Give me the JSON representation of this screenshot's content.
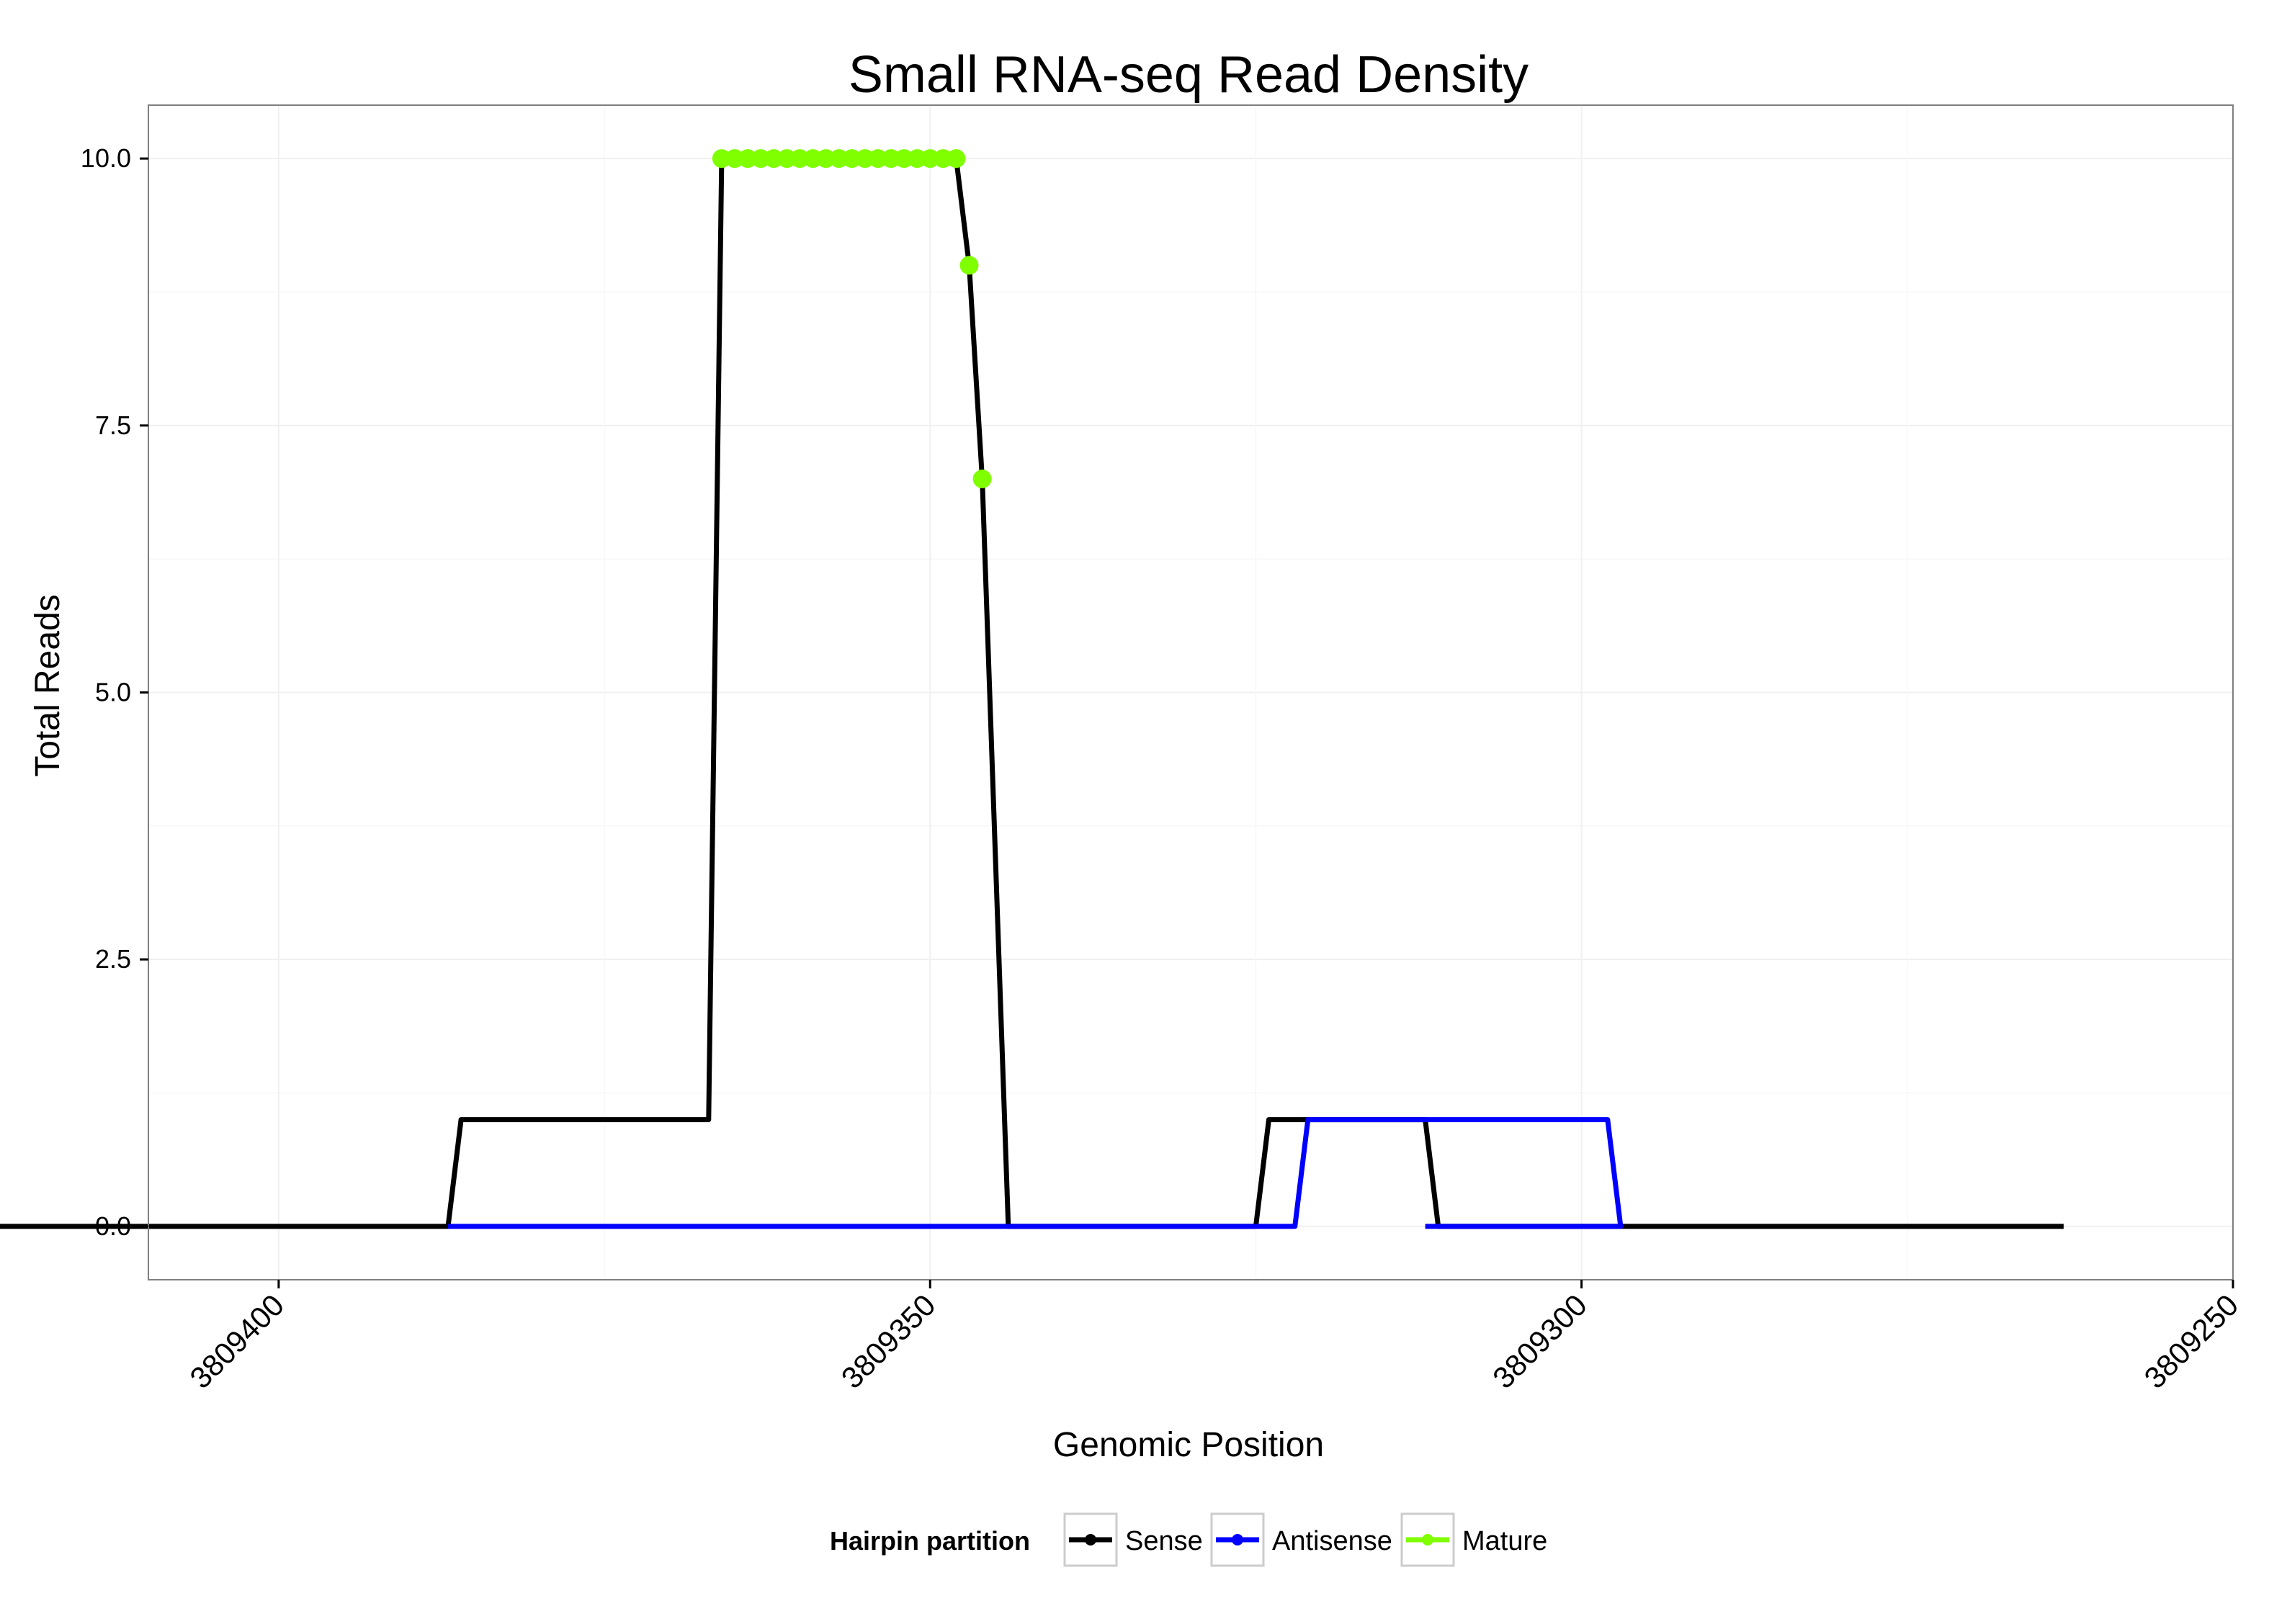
{
  "chart_data": {
    "type": "line",
    "title": "Small RNA-seq Read Density",
    "xlabel": "Genomic Position",
    "ylabel": "Total Reads",
    "xlim": [
      3809410,
      3809250
    ],
    "ylim": [
      -0.5,
      10.5
    ],
    "x_ticks": [
      3809400,
      3809350,
      3809300,
      3809250
    ],
    "x_tick_labels": [
      "3809400",
      "3809350",
      "3809300",
      "3809250"
    ],
    "y_ticks": [
      0,
      2.5,
      5,
      7.5,
      10
    ],
    "y_tick_labels": [
      "0.0",
      "2.5",
      "5.0",
      "7.5",
      "10.0"
    ],
    "grid": true,
    "legend": {
      "position": "bottom",
      "title": "Hairpin partition",
      "entries": [
        "Sense",
        "Antisense",
        "Mature"
      ]
    },
    "colors": {
      "Sense": "#000000",
      "Antisense": "#0000ff",
      "Mature": "#7fff00"
    },
    "series": [
      {
        "name": "Sense",
        "style": "line",
        "x": [
          3809425,
          3809387,
          3809386,
          3809367,
          3809366,
          3809348,
          3809347,
          3809346,
          3809344,
          3809325,
          3809324,
          3809312,
          3809311,
          3809263
        ],
        "y": [
          0,
          0,
          1,
          1,
          10,
          10,
          9,
          7,
          0,
          0,
          1,
          1,
          0,
          0
        ]
      },
      {
        "name": "Antisense",
        "style": "line",
        "x": [
          3809387,
          3809344,
          3809322,
          3809321,
          3809311,
          3809310,
          3809298,
          3809297,
          3809312
        ],
        "y": [
          0,
          0,
          0,
          1,
          1,
          1,
          1,
          0,
          0
        ]
      },
      {
        "name": "Mature",
        "style": "points",
        "x": [
          3809366,
          3809365,
          3809364,
          3809363,
          3809362,
          3809361,
          3809360,
          3809359,
          3809358,
          3809357,
          3809356,
          3809355,
          3809354,
          3809353,
          3809352,
          3809351,
          3809350,
          3809349,
          3809348,
          3809347,
          3809346
        ],
        "y": [
          10,
          10,
          10,
          10,
          10,
          10,
          10,
          10,
          10,
          10,
          10,
          10,
          10,
          10,
          10,
          10,
          10,
          10,
          10,
          9,
          7
        ]
      }
    ]
  }
}
